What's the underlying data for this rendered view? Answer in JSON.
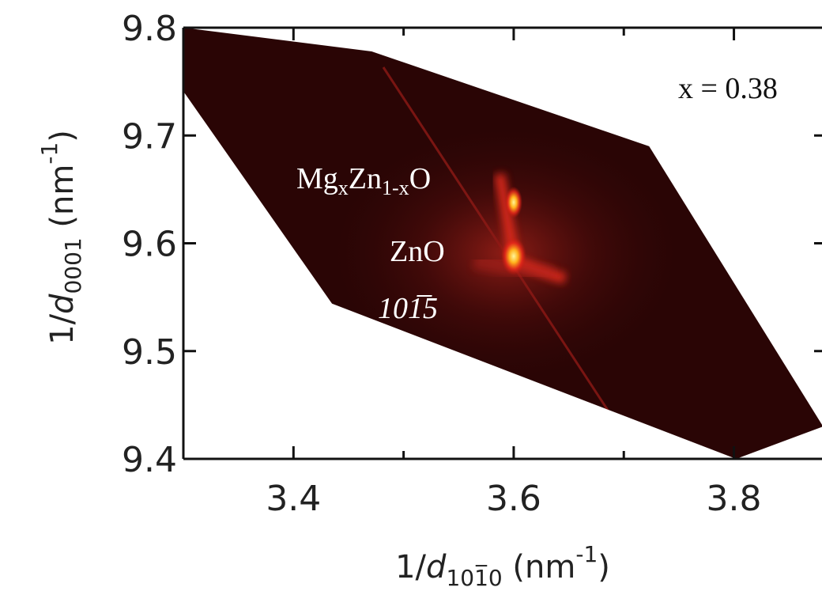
{
  "chart_data": {
    "type": "map",
    "xlim": [
      3.3,
      3.88
    ],
    "ylim": [
      9.4,
      9.8
    ],
    "xticks": [
      3.4,
      3.6,
      3.8
    ],
    "xticks_minor": [
      3.5,
      3.7
    ],
    "yticks": [
      9.4,
      9.5,
      9.6,
      9.7,
      9.8
    ],
    "x_label_parts": [
      "1/",
      "d",
      "101̅0",
      " (nm",
      "-1",
      ")"
    ],
    "y_label_parts": [
      "1/",
      "d",
      "0001",
      " (nm",
      "-1",
      ")"
    ],
    "region": {
      "x": [
        3.3,
        3.471,
        3.723,
        3.881,
        3.802,
        3.435,
        3.3
      ],
      "y": [
        9.8,
        9.778,
        9.69,
        9.43,
        9.4,
        9.544,
        9.741
      ]
    },
    "peaks": {
      "x": [
        3.6,
        3.6
      ],
      "y": [
        9.588,
        9.638
      ]
    },
    "annotations": {
      "composition": "x = 0.38",
      "alloy_parts": [
        "Mg",
        "x",
        "Zn",
        "1-x",
        "O"
      ],
      "substrate": "ZnO",
      "reflection": "101̅5"
    }
  }
}
